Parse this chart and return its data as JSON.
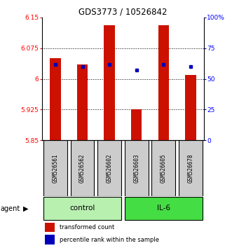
{
  "title": "GDS3773 / 10526842",
  "samples": [
    "GSM526561",
    "GSM526562",
    "GSM526602",
    "GSM526603",
    "GSM526605",
    "GSM526678"
  ],
  "red_values": [
    6.05,
    6.035,
    6.13,
    5.925,
    6.13,
    6.01
  ],
  "blue_percentile": [
    62,
    60,
    62,
    57,
    62,
    60
  ],
  "ylim_left": [
    5.85,
    6.15
  ],
  "ylim_right": [
    0,
    100
  ],
  "yticks_left": [
    5.85,
    5.925,
    6.0,
    6.075,
    6.15
  ],
  "yticks_right": [
    0,
    25,
    50,
    75,
    100
  ],
  "ytick_labels_left": [
    "5.85",
    "5.925",
    "6",
    "6.075",
    "6.15"
  ],
  "ytick_labels_right": [
    "0",
    "25",
    "50",
    "75",
    "100%"
  ],
  "hline_values": [
    5.925,
    6.0,
    6.075
  ],
  "bar_color": "#CC1100",
  "dot_color": "#0000BB",
  "bar_bottom": 5.85,
  "group_label": "agent",
  "legend_items": [
    "transformed count",
    "percentile rank within the sample"
  ],
  "control_color": "#B8F0B0",
  "il6_color": "#44DD44",
  "sample_box_color": "#CCCCCC"
}
